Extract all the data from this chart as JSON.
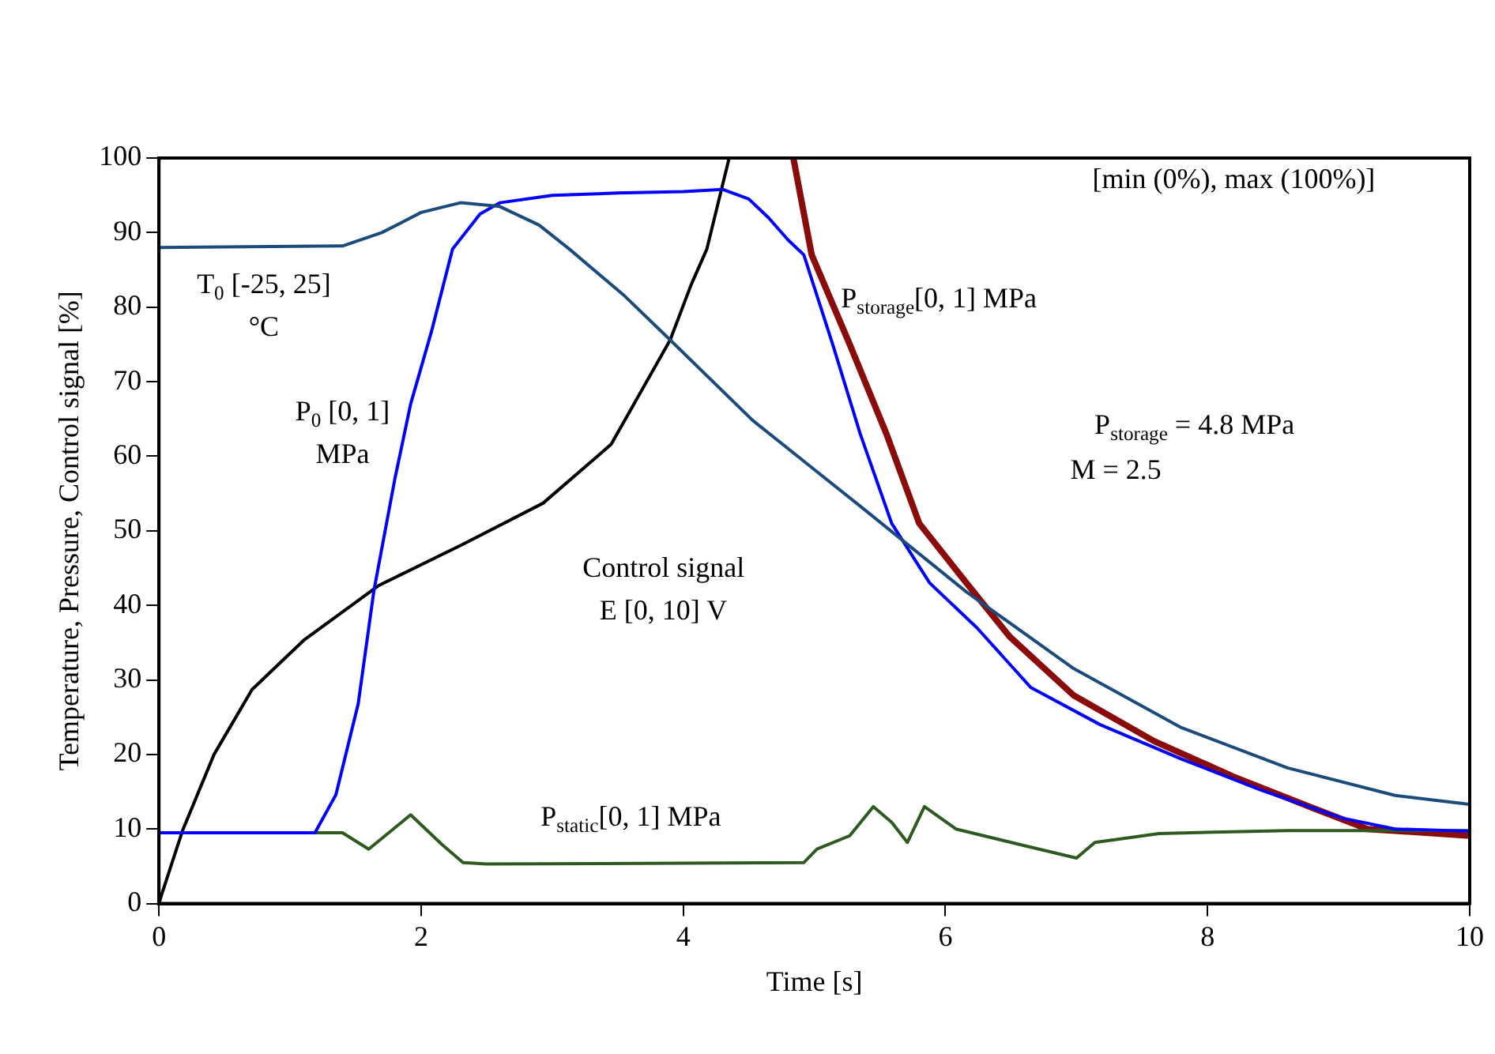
{
  "chart_data": {
    "type": "line",
    "xlabel": "Time [s]",
    "ylabel": "Temperature, Pressure, Control signal [%]",
    "xlim": [
      0,
      10
    ],
    "xticks": [
      0,
      2,
      4,
      6,
      8,
      10
    ],
    "ylim": [
      0,
      100
    ],
    "yticks": [
      0,
      10,
      20,
      30,
      40,
      50,
      60,
      70,
      80,
      90,
      100
    ],
    "grid": false,
    "legend": false,
    "marker": "none",
    "line_style": "solid",
    "series": [
      {
        "name": "T$_{0}$ [-25, 25] °C",
        "color": "#1b4b7b",
        "x": [
          0,
          1.4,
          1.7,
          2.0,
          2.3,
          2.6,
          2.9,
          3.13,
          3.54,
          3.9,
          4.53,
          5.35,
          6.16,
          6.98,
          7.8,
          8.61,
          9.43,
          10
        ],
        "values": [
          88,
          88.2,
          90,
          92.7,
          94,
          93.5,
          91,
          87.8,
          81.7,
          75.6,
          64.8,
          53.3,
          41.8,
          31.5,
          23.6,
          18.2,
          14.5,
          13.3
        ]
      },
      {
        "name": "P$_{0}$ [0, 1] MPa",
        "color": "#0000ff",
        "x": [
          0,
          1.19,
          1.35,
          1.52,
          1.64,
          1.8,
          1.92,
          2.08,
          2.24,
          2.45,
          2.6,
          3.0,
          3.5,
          4.0,
          4.3,
          4.5,
          4.65,
          4.8,
          4.92,
          5.14,
          5.35,
          5.59,
          5.88,
          6.24,
          6.65,
          7.18,
          7.8,
          8.41,
          9.02,
          9.43,
          10
        ],
        "values": [
          9.5,
          9.5,
          14.6,
          26.8,
          42,
          57,
          67,
          76.8,
          87.8,
          92.5,
          94,
          95,
          95.3,
          95.5,
          95.8,
          94.5,
          92,
          89,
          87,
          75,
          63,
          51,
          43,
          37,
          29,
          24,
          19.4,
          15.2,
          11.5,
          10,
          9.7
        ]
      },
      {
        "name": "Control signal E [0, 10] V",
        "color": "#000000",
        "x": [
          0,
          0.02,
          0.18,
          0.42,
          0.71,
          1.11,
          1.68,
          2.32,
          2.93,
          3.45,
          3.9,
          4.06,
          4.18,
          4.35
        ],
        "values": [
          0,
          1.2,
          9.8,
          20,
          28.7,
          35.4,
          42.7,
          48.2,
          53.7,
          61.6,
          75.6,
          83,
          87.8,
          100
        ]
      },
      {
        "name": "P$_{static}$[0, 1] MPa",
        "color": "#2e5a1f",
        "x": [
          0,
          1.4,
          1.6,
          1.92,
          2.16,
          2.32,
          2.5,
          4.92,
          5.02,
          5.27,
          5.45,
          5.59,
          5.71,
          5.84,
          6.08,
          6.57,
          7.0,
          7.14,
          7.63,
          8.61,
          10
        ],
        "values": [
          9.5,
          9.5,
          7.3,
          11.9,
          7.9,
          5.5,
          5.3,
          5.5,
          7.3,
          9.1,
          13,
          10.9,
          8.2,
          13,
          10,
          7.9,
          6.1,
          8.2,
          9.4,
          9.8,
          9.8
        ]
      },
      {
        "name": "P$_{storage}$[0, 1] MPa",
        "color": "#8b0a0a",
        "x": [
          4.84,
          4.98,
          5.27,
          5.55,
          5.8,
          6.16,
          6.49,
          6.98,
          7.59,
          8.2,
          8.82,
          9.22,
          10
        ],
        "values": [
          100,
          87,
          75,
          63,
          51,
          43,
          35.8,
          27.9,
          21.8,
          17,
          12.7,
          10,
          9.1
        ]
      }
    ],
    "annotations": [
      "P$_{storage}$ = 4.8 MPa",
      "M = 2.5",
      "[min (0%), max (100%)]"
    ]
  }
}
